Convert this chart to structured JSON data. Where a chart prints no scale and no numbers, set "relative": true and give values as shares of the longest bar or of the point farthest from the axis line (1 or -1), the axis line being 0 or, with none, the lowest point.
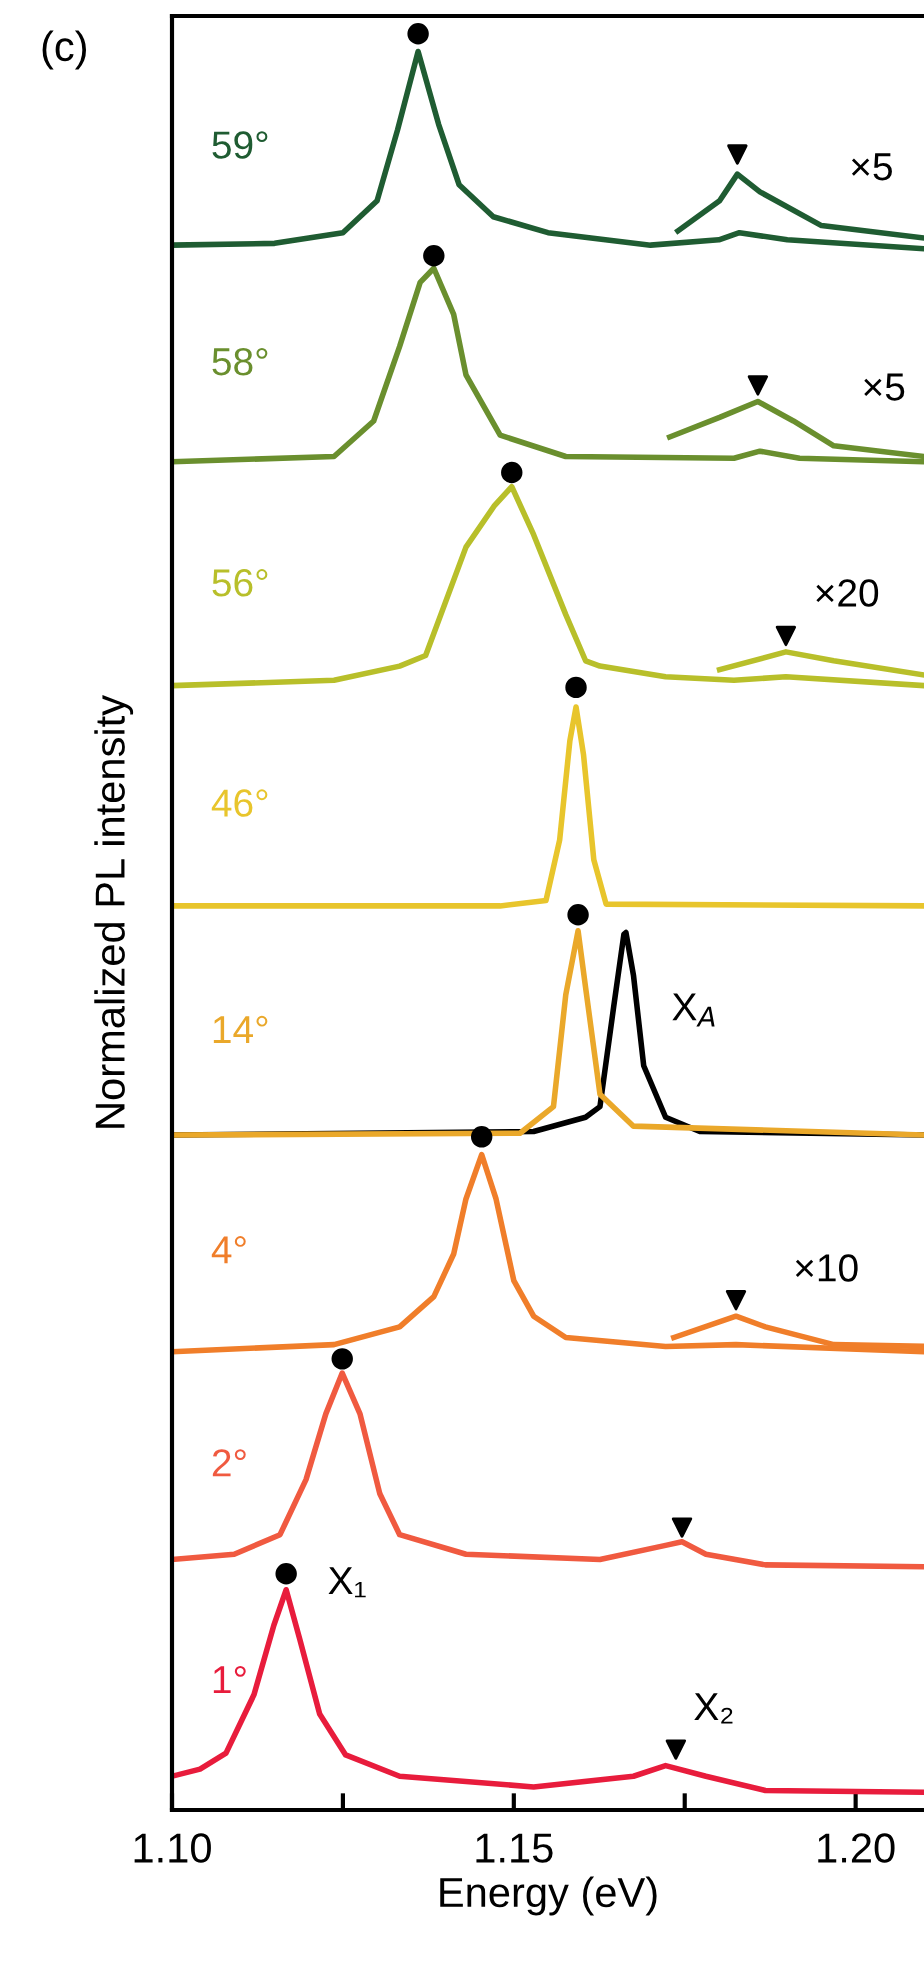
{
  "chart_data": {
    "type": "line",
    "title": "(c)",
    "xlabel": "Energy (eV)",
    "ylabel": "Normalized PL intensity",
    "relative": true,
    "xlim": [
      1.1,
      1.21
    ],
    "xticks": [
      {
        "value": 1.1,
        "label": "1.10"
      },
      {
        "value": 1.125,
        "label": null
      },
      {
        "value": 1.15,
        "label": "1.15"
      },
      {
        "value": 1.175,
        "label": null
      },
      {
        "value": 1.2,
        "label": "1.20"
      }
    ],
    "grid": false,
    "legend": false,
    "line_style": "solid",
    "marker": "none",
    "series": [
      {
        "name": "59°",
        "color": "#1f5c32",
        "x": [
          1.1,
          1.115,
          1.125,
          1.13,
          1.133,
          1.136,
          1.139,
          1.142,
          1.147,
          1.155,
          1.17,
          1.18,
          1.183,
          1.19,
          1.21
        ],
        "values": [
          0.881,
          0.882,
          0.888,
          0.906,
          0.946,
          0.99,
          0.949,
          0.915,
          0.897,
          0.888,
          0.881,
          0.884,
          0.888,
          0.884,
          0.879
        ]
      },
      {
        "color": "#1f5c32",
        "x": [
          1.174,
          1.1801,
          1.1827,
          1.186,
          1.195,
          1.21
        ],
        "values": [
          0.889,
          0.906,
          0.921,
          0.911,
          0.892,
          0.885
        ]
      },
      {
        "name": "58°",
        "color": "#6a8f2e",
        "x": [
          1.1,
          1.1237,
          1.1295,
          1.1333,
          1.1363,
          1.1383,
          1.1412,
          1.143,
          1.148,
          1.1576,
          1.1822,
          1.186,
          1.1918,
          1.21
        ],
        "values": [
          0.759,
          0.762,
          0.782,
          0.824,
          0.86,
          0.868,
          0.842,
          0.808,
          0.774,
          0.762,
          0.761,
          0.765,
          0.761,
          0.759
        ]
      },
      {
        "color": "#6a8f2e",
        "x": [
          1.1728,
          1.1801,
          1.1857,
          1.1909,
          1.1968,
          1.21
        ],
        "values": [
          0.773,
          0.784,
          0.793,
          0.782,
          0.768,
          0.762
        ]
      },
      {
        "name": "56°",
        "color": "#b8bf2a",
        "x": [
          1.1,
          1.1237,
          1.1333,
          1.1371,
          1.143,
          1.1471,
          1.1497,
          1.1529,
          1.1576,
          1.1605,
          1.1626,
          1.1722,
          1.1822,
          1.1898,
          1.21
        ],
        "values": [
          0.633,
          0.636,
          0.644,
          0.65,
          0.711,
          0.734,
          0.745,
          0.718,
          0.673,
          0.647,
          0.644,
          0.638,
          0.636,
          0.638,
          0.633
        ]
      },
      {
        "color": "#b8bf2a",
        "x": [
          1.1801,
          1.1898,
          1.1968,
          1.21
        ],
        "values": [
          0.642,
          0.652,
          0.647,
          0.639
        ]
      },
      {
        "name": "46°",
        "color": "#e8c52c",
        "x": [
          1.1,
          1.148,
          1.1547,
          1.1567,
          1.1582,
          1.1591,
          1.1602,
          1.1617,
          1.1635,
          1.21
        ],
        "values": [
          0.509,
          0.509,
          0.512,
          0.546,
          0.602,
          0.621,
          0.594,
          0.535,
          0.51,
          0.509
        ]
      },
      {
        "color": "#000000",
        "x": [
          1.1,
          1.1529,
          1.1605,
          1.1626,
          1.1646,
          1.1661,
          1.1664,
          1.1675,
          1.169,
          1.1722,
          1.1772,
          1.21
        ],
        "values": [
          0.38,
          0.382,
          0.39,
          0.396,
          0.452,
          0.493,
          0.494,
          0.47,
          0.419,
          0.39,
          0.382,
          0.38
        ]
      },
      {
        "name": "14°",
        "color": "#eaa82a",
        "x": [
          1.1,
          1.1509,
          1.1558,
          1.1576,
          1.1594,
          1.1605,
          1.1626,
          1.1675,
          1.21
        ],
        "values": [
          0.38,
          0.381,
          0.396,
          0.459,
          0.495,
          0.463,
          0.403,
          0.385,
          0.38
        ]
      },
      {
        "name": "4°",
        "color": "#f07e2a",
        "x": [
          1.1,
          1.1237,
          1.1333,
          1.1383,
          1.1412,
          1.143,
          1.1453,
          1.1474,
          1.15,
          1.1529,
          1.1576,
          1.1722,
          1.1825,
          1.21
        ],
        "values": [
          0.258,
          0.262,
          0.272,
          0.289,
          0.313,
          0.344,
          0.369,
          0.344,
          0.298,
          0.278,
          0.266,
          0.261,
          0.262,
          0.258
        ]
      },
      {
        "color": "#f07e2a",
        "x": [
          1.1734,
          1.1825,
          1.1868,
          1.1968,
          1.21
        ],
        "values": [
          0.266,
          0.278,
          0.272,
          0.262,
          0.261
        ]
      },
      {
        "name": "2°",
        "color": "#f05a40",
        "x": [
          1.1,
          1.1091,
          1.1158,
          1.1196,
          1.1225,
          1.1249,
          1.1275,
          1.1304,
          1.1333,
          1.143,
          1.1626,
          1.1722,
          1.1746,
          1.1781,
          1.1868,
          1.21
        ],
        "values": [
          0.141,
          0.144,
          0.155,
          0.186,
          0.223,
          0.246,
          0.223,
          0.178,
          0.155,
          0.144,
          0.141,
          0.149,
          0.151,
          0.144,
          0.138,
          0.137
        ]
      },
      {
        "name": "1°",
        "color": "#e81c3c",
        "x": [
          1.1,
          1.1041,
          1.1079,
          1.112,
          1.1149,
          1.1167,
          1.1187,
          1.1216,
          1.1254,
          1.1333,
          1.1529,
          1.1675,
          1.1722,
          1.1781,
          1.1868,
          1.21
        ],
        "values": [
          0.019,
          0.023,
          0.032,
          0.065,
          0.104,
          0.124,
          0.096,
          0.054,
          0.031,
          0.019,
          0.013,
          0.019,
          0.025,
          0.019,
          0.011,
          0.01
        ]
      },
      {
        "type": "scatter",
        "marker": "circle",
        "color": "#000000",
        "x": [
          1.136,
          1.1383,
          1.1497,
          1.1591,
          1.1594,
          1.1453,
          1.1249,
          1.1167
        ],
        "values": [
          1.0,
          0.875,
          0.753,
          0.632,
          0.504,
          0.379,
          0.254,
          0.133
        ]
      },
      {
        "type": "scatter",
        "marker": "triangle",
        "color": "#000000",
        "x": [
          1.1827,
          1.1857,
          1.1898,
          1.1825,
          1.1746,
          1.1737
        ],
        "values": [
          0.932,
          0.802,
          0.661,
          0.287,
          0.159,
          0.034
        ]
      }
    ],
    "annotations": [
      {
        "text": "×5",
        "x": 1.195,
        "y": 0.892
      },
      {
        "text": "×5",
        "x": 1.1968,
        "y": 0.768
      },
      {
        "text": "×20",
        "x": 1.1898,
        "y": 0.652
      },
      {
        "text": "X$_{A}$",
        "x": 1.169,
        "y": 0.419
      },
      {
        "text": "×10",
        "x": 1.1868,
        "y": 0.272
      },
      {
        "text": "X₁",
        "x": 1.1187,
        "y": 0.096
      },
      {
        "text": "X₂",
        "x": 1.1722,
        "y": 0.025
      }
    ]
  }
}
